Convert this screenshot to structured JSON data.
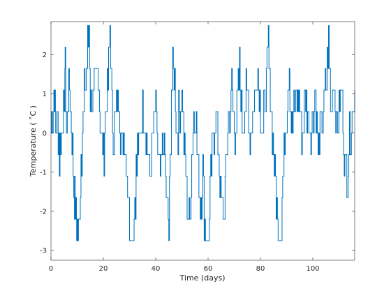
{
  "chart_data": {
    "type": "line",
    "title": "",
    "xlabel": "Time (days)",
    "ylabel": "Temperature ( ˚C )",
    "xlim": [
      0,
      116
    ],
    "ylim": [
      -3.25,
      2.85
    ],
    "xticks": [
      0,
      20,
      40,
      60,
      80,
      100
    ],
    "yticks": [
      -3,
      -2,
      -1,
      0,
      1,
      2
    ],
    "xtick_labels": [
      "0",
      "20",
      "40",
      "60",
      "80",
      "100"
    ],
    "ytick_labels": [
      "-3",
      "-2",
      "-1",
      "0",
      "1",
      "2"
    ],
    "grid": false,
    "legend": "none",
    "series_color": "#0072BD",
    "series": [
      {
        "name": "",
        "sample_interval_days": 0.25,
        "step": 0.55,
        "x_start": 0,
        "segments": [
          [
            0.0,
            0
          ],
          [
            0.6,
            1
          ],
          [
            1.2,
            2
          ],
          [
            1.8,
            0
          ],
          [
            2.5,
            1
          ],
          [
            3.2,
            -1
          ],
          [
            4.0,
            0
          ],
          [
            4.8,
            1
          ],
          [
            5.4,
            3
          ],
          [
            6.0,
            0
          ],
          [
            6.8,
            2
          ],
          [
            7.5,
            1
          ],
          [
            8.2,
            -1
          ],
          [
            9.0,
            -3
          ],
          [
            9.8,
            -4
          ],
          [
            10.5,
            -5
          ],
          [
            11.2,
            -2
          ],
          [
            12.0,
            0
          ],
          [
            13.0,
            2
          ],
          [
            14.0,
            4
          ],
          [
            14.5,
            5
          ],
          [
            15.0,
            2
          ],
          [
            16.0,
            1
          ],
          [
            17.0,
            2
          ],
          [
            18.0,
            3
          ],
          [
            19.0,
            0
          ],
          [
            20.0,
            -1
          ],
          [
            21.0,
            1
          ],
          [
            22.0,
            3
          ],
          [
            22.5,
            5
          ],
          [
            23.0,
            2
          ],
          [
            24.0,
            0
          ],
          [
            25.0,
            1
          ],
          [
            26.0,
            2
          ],
          [
            27.0,
            -1
          ],
          [
            28.0,
            0
          ],
          [
            29.0,
            -2
          ],
          [
            30.0,
            -4
          ],
          [
            31.0,
            -6
          ],
          [
            32.0,
            -3
          ],
          [
            33.0,
            -1
          ],
          [
            34.0,
            0
          ],
          [
            35.0,
            1
          ],
          [
            36.0,
            0
          ],
          [
            37.0,
            -1
          ],
          [
            38.0,
            -2
          ],
          [
            39.0,
            0
          ],
          [
            40.0,
            1
          ],
          [
            41.0,
            -1
          ],
          [
            42.0,
            -2
          ],
          [
            43.0,
            0
          ],
          [
            44.0,
            -3
          ],
          [
            45.0,
            -5
          ],
          [
            46.0,
            2
          ],
          [
            47.0,
            3
          ],
          [
            48.0,
            0
          ],
          [
            49.0,
            1
          ],
          [
            50.0,
            2
          ],
          [
            51.0,
            -1
          ],
          [
            52.0,
            -3
          ],
          [
            53.0,
            -4
          ],
          [
            54.0,
            0
          ],
          [
            55.0,
            1
          ],
          [
            56.0,
            -1
          ],
          [
            57.0,
            -3
          ],
          [
            58.0,
            -2
          ],
          [
            59.0,
            -5
          ],
          [
            60.0,
            -6
          ],
          [
            61.0,
            -2
          ],
          [
            62.0,
            0
          ],
          [
            63.0,
            1
          ],
          [
            64.0,
            -1
          ],
          [
            65.0,
            -3
          ],
          [
            66.0,
            -4
          ],
          [
            67.0,
            -1
          ],
          [
            68.0,
            1
          ],
          [
            69.0,
            2
          ],
          [
            70.0,
            0
          ],
          [
            71.0,
            1
          ],
          [
            72.0,
            3
          ],
          [
            73.0,
            0
          ],
          [
            74.0,
            1
          ],
          [
            75.0,
            2
          ],
          [
            76.0,
            0
          ],
          [
            77.0,
            1
          ],
          [
            78.0,
            2
          ],
          [
            79.0,
            3
          ],
          [
            80.0,
            1
          ],
          [
            81.0,
            0
          ],
          [
            82.0,
            2
          ],
          [
            83.0,
            4
          ],
          [
            84.0,
            1
          ],
          [
            85.0,
            -1
          ],
          [
            86.0,
            -3
          ],
          [
            87.0,
            -5
          ],
          [
            88.0,
            -4
          ],
          [
            89.0,
            -1
          ],
          [
            90.0,
            1
          ],
          [
            91.0,
            3
          ],
          [
            92.0,
            0
          ],
          [
            93.0,
            1
          ],
          [
            94.0,
            2
          ],
          [
            95.0,
            1
          ],
          [
            96.0,
            0
          ],
          [
            97.0,
            2
          ],
          [
            98.0,
            1
          ],
          [
            99.0,
            0
          ],
          [
            100.0,
            1
          ],
          [
            101.0,
            2
          ],
          [
            102.0,
            -1
          ],
          [
            103.0,
            0
          ],
          [
            104.0,
            1
          ],
          [
            105.0,
            2
          ],
          [
            106.0,
            4
          ],
          [
            107.0,
            1
          ],
          [
            108.0,
            3
          ],
          [
            109.0,
            0
          ],
          [
            110.0,
            1
          ],
          [
            111.0,
            2
          ],
          [
            112.0,
            -1
          ],
          [
            113.0,
            -2
          ],
          [
            114.0,
            0
          ],
          [
            115.0,
            1
          ],
          [
            116.0,
            2
          ]
        ]
      }
    ]
  }
}
